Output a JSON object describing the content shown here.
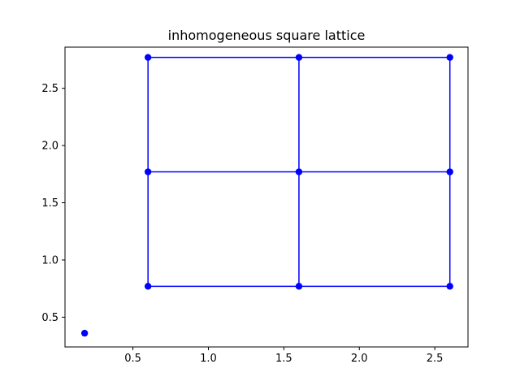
{
  "chart_data": {
    "type": "scatter",
    "title": "inhomogeneous square lattice",
    "xlabel": "",
    "ylabel": "",
    "xlim": [
      0.05,
      2.72
    ],
    "ylim": [
      0.24,
      2.86
    ],
    "xticks": [
      0.5,
      1.0,
      1.5,
      2.0,
      2.5
    ],
    "xtick_labels": [
      "0.5",
      "1.0",
      "1.5",
      "2.0",
      "2.5"
    ],
    "yticks": [
      0.5,
      1.0,
      1.5,
      2.0,
      2.5
    ],
    "ytick_labels": [
      "0.5",
      "1.0",
      "1.5",
      "2.0",
      "2.5"
    ],
    "grid": false,
    "color": "#0000ff",
    "points": [
      [
        0.6,
        0.77
      ],
      [
        1.6,
        0.77
      ],
      [
        2.6,
        0.77
      ],
      [
        0.6,
        1.77
      ],
      [
        1.6,
        1.77
      ],
      [
        2.6,
        1.77
      ],
      [
        0.6,
        2.77
      ],
      [
        1.6,
        2.77
      ],
      [
        2.6,
        2.77
      ],
      [
        0.18,
        0.36
      ]
    ],
    "edges": [
      [
        [
          0.6,
          0.77
        ],
        [
          1.6,
          0.77
        ]
      ],
      [
        [
          1.6,
          0.77
        ],
        [
          2.6,
          0.77
        ]
      ],
      [
        [
          0.6,
          1.77
        ],
        [
          1.6,
          1.77
        ]
      ],
      [
        [
          1.6,
          1.77
        ],
        [
          2.6,
          1.77
        ]
      ],
      [
        [
          0.6,
          2.77
        ],
        [
          1.6,
          2.77
        ]
      ],
      [
        [
          1.6,
          2.77
        ],
        [
          2.6,
          2.77
        ]
      ],
      [
        [
          0.6,
          0.77
        ],
        [
          0.6,
          1.77
        ]
      ],
      [
        [
          0.6,
          1.77
        ],
        [
          0.6,
          2.77
        ]
      ],
      [
        [
          1.6,
          0.77
        ],
        [
          1.6,
          1.77
        ]
      ],
      [
        [
          1.6,
          1.77
        ],
        [
          1.6,
          2.77
        ]
      ],
      [
        [
          2.6,
          0.77
        ],
        [
          2.6,
          1.77
        ]
      ],
      [
        [
          2.6,
          1.77
        ],
        [
          2.6,
          2.77
        ]
      ]
    ]
  }
}
